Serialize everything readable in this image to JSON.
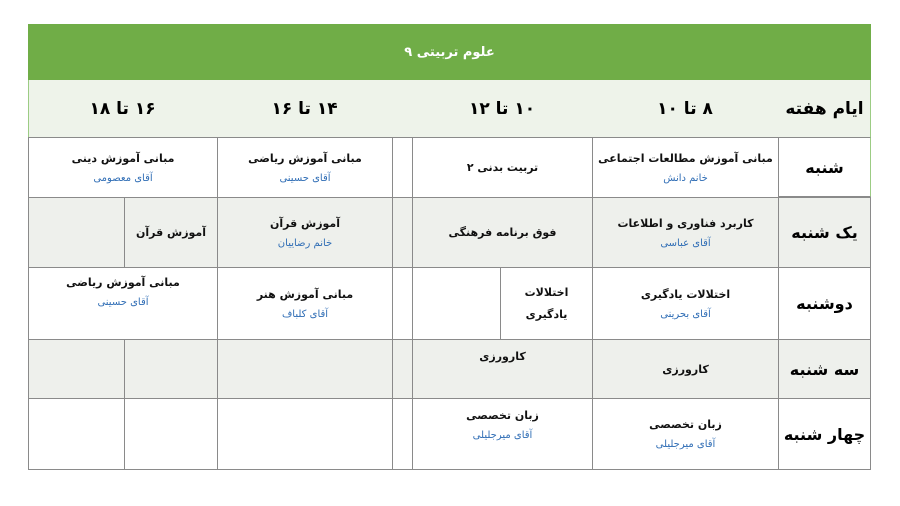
{
  "title": "علوم تربیتی ۹",
  "headers": {
    "days": "ایام هفته",
    "slot1": "۸ تا ۱۰",
    "slot2": "۱۰  تا ۱۲",
    "slot3": "۱۴ تا ۱۶",
    "slot4": "۱۶ تا ۱۸"
  },
  "colors": {
    "title_bg": "#70ad47",
    "teacher_text": "#2f6db5",
    "row_alt": "#eef0ec"
  },
  "rows": [
    {
      "day": "شنبه",
      "s1": {
        "subject": "مبانی آموزش مطالعات اجتماعی",
        "teacher": "خانم دانش"
      },
      "s2": {
        "subject": "تربیت بدنی ۲"
      },
      "s3": {
        "subject": "مبانی آموزش ریاضی",
        "teacher": "آقای حسینی"
      },
      "s4": {
        "subject": "مبانی آموزش دینی",
        "teacher": "آقای معصومی"
      }
    },
    {
      "day": "یک شنبه",
      "s1": {
        "subject": "کاربرد فناوری و اطلاعات",
        "teacher": "آقای عباسی"
      },
      "s2": {
        "subject": "فوق برنامه فرهنگی"
      },
      "s3": {
        "subject": "آموزش قرآن",
        "teacher": "خانم رضاییان"
      },
      "s4": {
        "subject": "آموزش قرآن"
      }
    },
    {
      "day": "دوشنبه",
      "s1": {
        "subject": "اختلالات یادگیری",
        "teacher": "آقای بحرینی"
      },
      "s2": {
        "subject": "اختلالات یادگیری"
      },
      "s3": {
        "subject": "مبانی آموزش هنر",
        "teacher": "آقای کلباف"
      },
      "s4": {
        "subject": "مبانی آموزش ریاضی",
        "teacher": "آقای حسینی"
      }
    },
    {
      "day": "سه شنبه",
      "s1": {
        "subject": "کارورزی"
      },
      "s2": {
        "subject": "کارورزی"
      }
    },
    {
      "day": "چهار شنبه",
      "s1": {
        "subject": "زبان تخصصی",
        "teacher": "آقای میرجلیلی"
      },
      "s2": {
        "subject": "زبان تخصصی",
        "teacher": "آقای میرجلیلی"
      }
    }
  ]
}
